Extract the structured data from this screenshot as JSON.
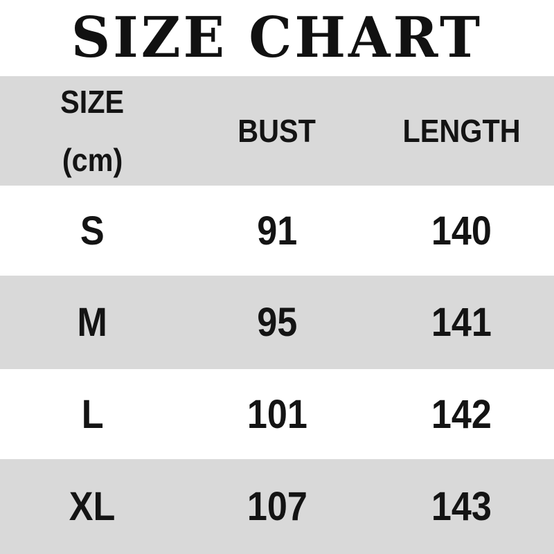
{
  "title": "SIZE CHART",
  "colors": {
    "background": "#ffffff",
    "band_gray": "#d9d9d9",
    "text": "#141414"
  },
  "table": {
    "header": {
      "col1_line1": "SIZE",
      "col1_line2": "(cm)",
      "col2": "BUST",
      "col3": "LENGTH"
    },
    "rows": [
      {
        "size": "S",
        "bust": "91",
        "length": "140"
      },
      {
        "size": "M",
        "bust": "95",
        "length": "141"
      },
      {
        "size": "L",
        "bust": "101",
        "length": "142"
      },
      {
        "size": "XL",
        "bust": "107",
        "length": "143"
      }
    ]
  },
  "chart_data": {
    "type": "table",
    "title": "SIZE CHART",
    "units": "cm",
    "columns": [
      "SIZE (cm)",
      "BUST",
      "LENGTH"
    ],
    "rows": [
      [
        "S",
        91,
        140
      ],
      [
        "M",
        95,
        141
      ],
      [
        "L",
        101,
        142
      ],
      [
        "XL",
        107,
        143
      ]
    ],
    "layout_hints": {
      "header_background": "#d9d9d9",
      "alternating_row_background": [
        "#ffffff",
        "#d9d9d9"
      ],
      "text_alignment": "center",
      "grid": false
    }
  }
}
